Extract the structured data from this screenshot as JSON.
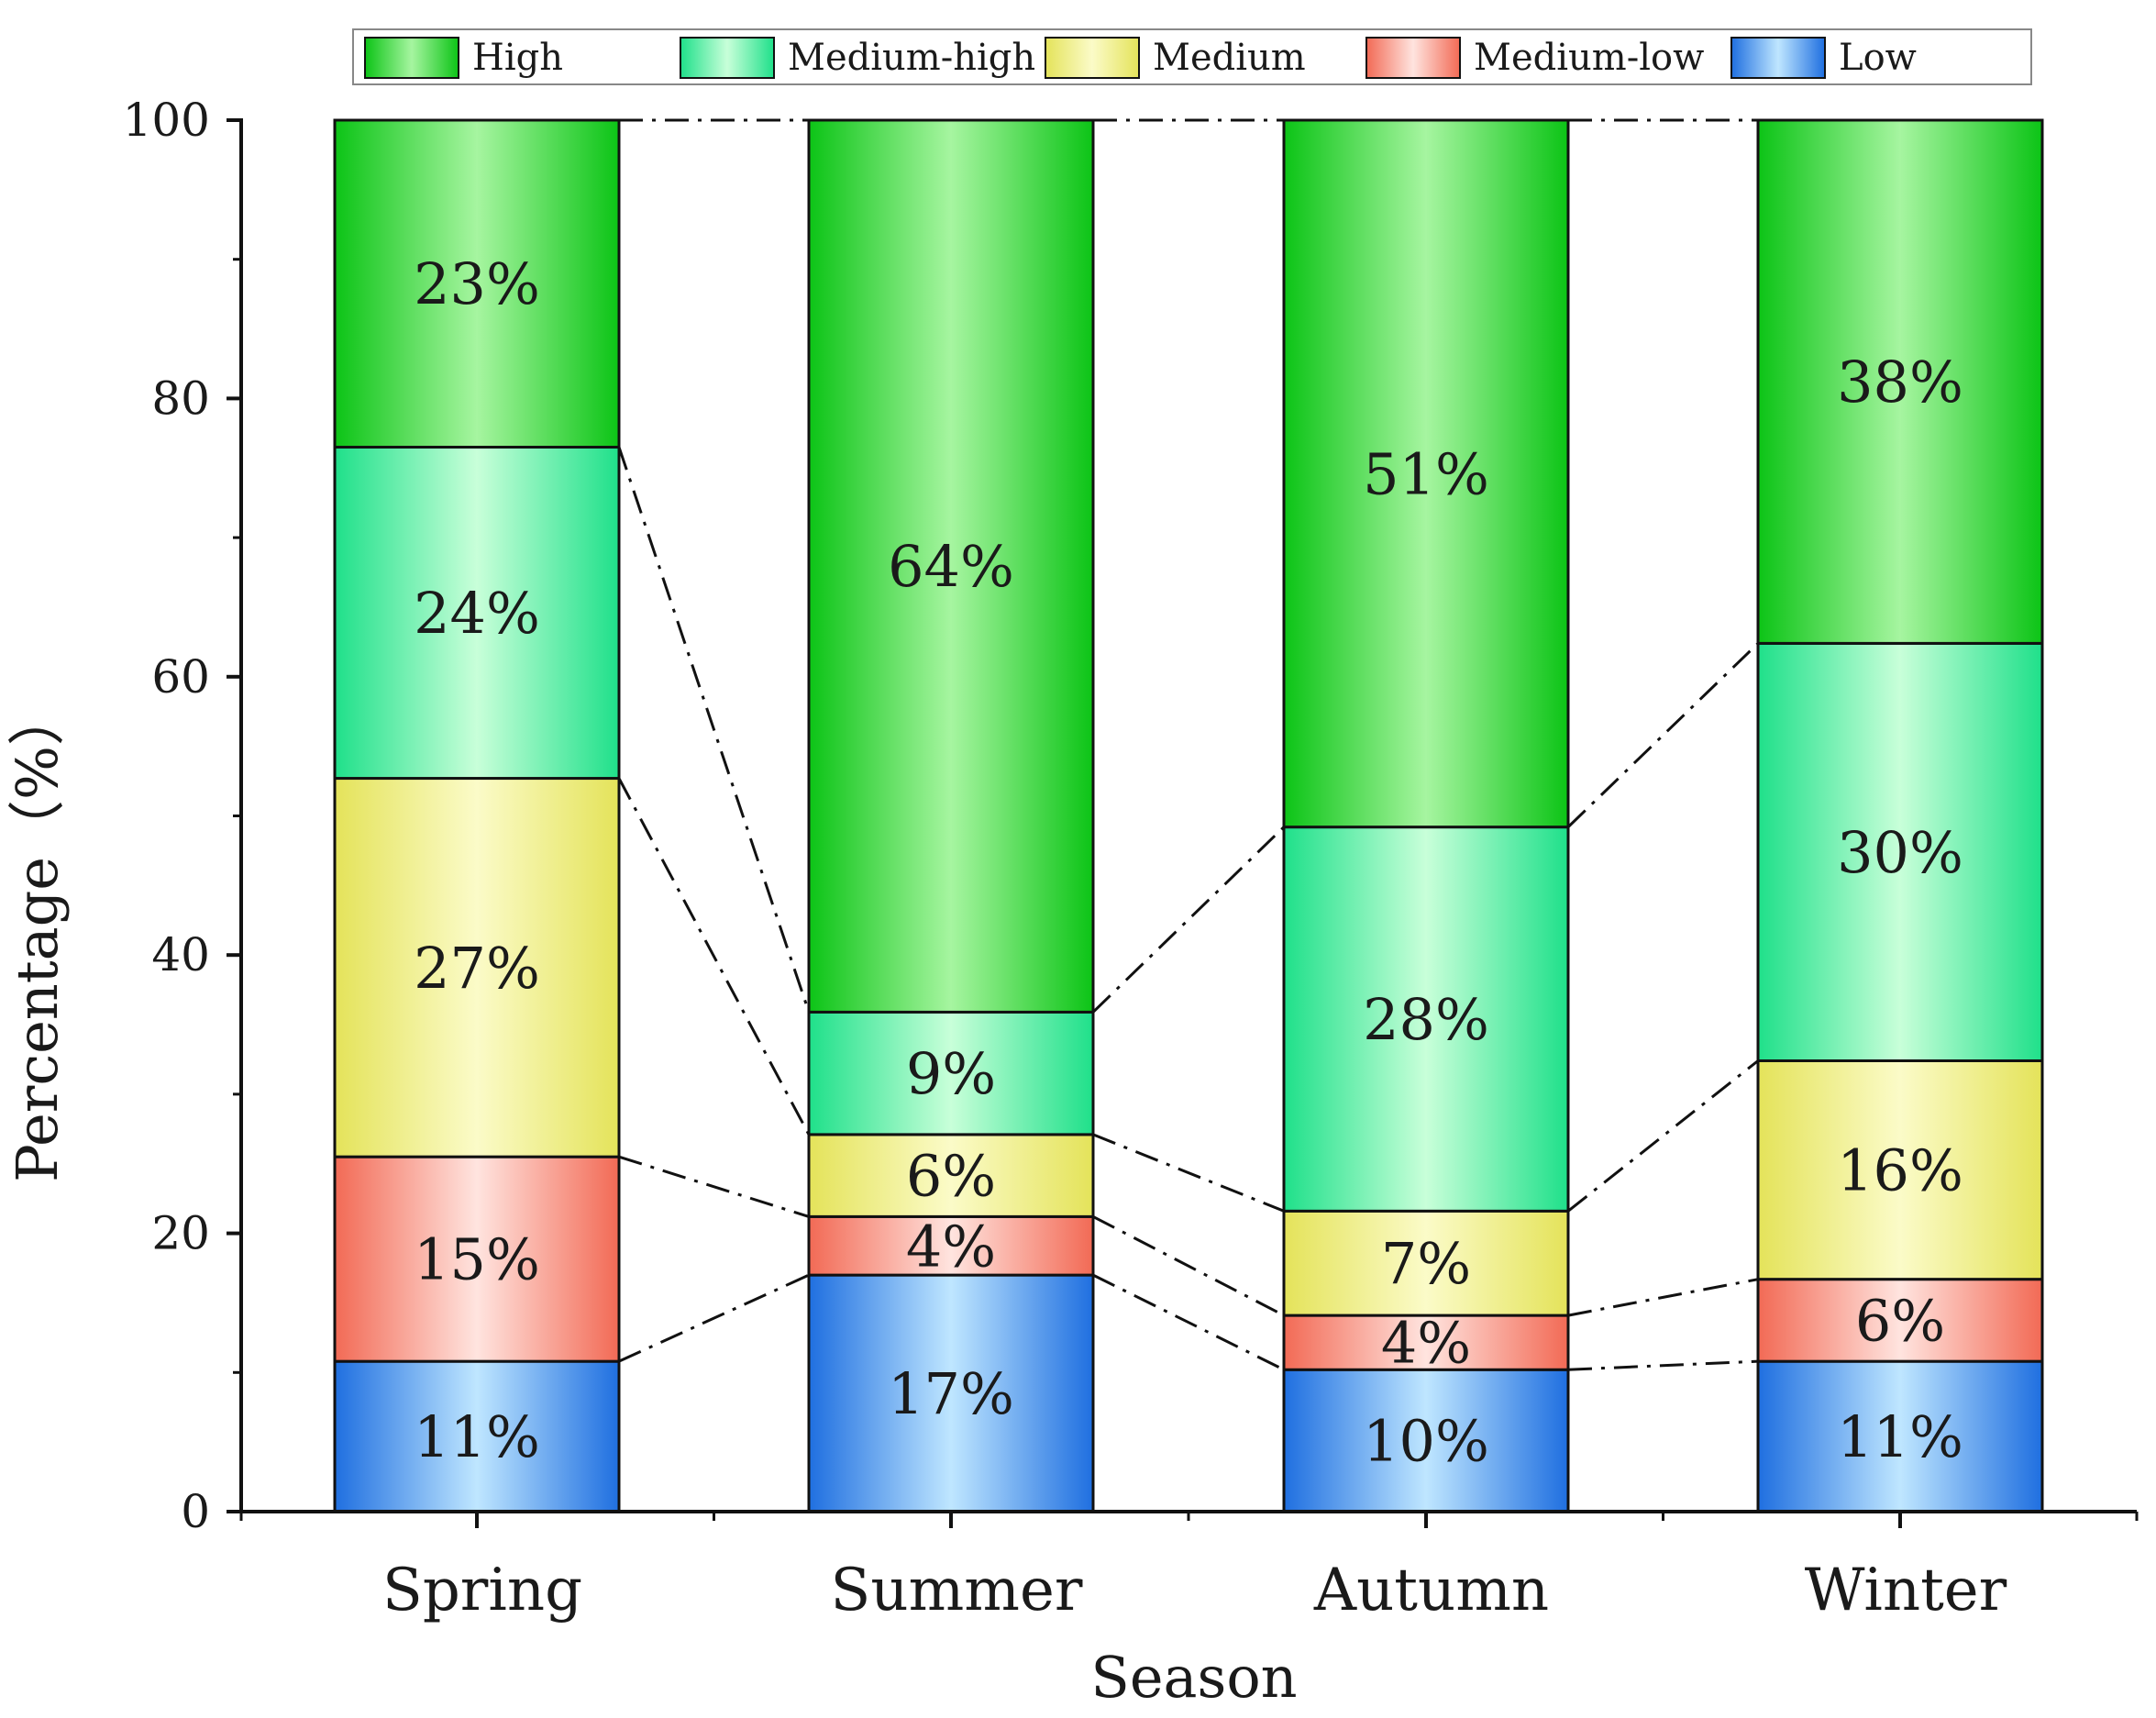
{
  "chart_data": {
    "type": "bar",
    "stacked": true,
    "title": "",
    "xlabel": "Season",
    "ylabel": "Percentage（%）",
    "ylim": [
      0,
      100
    ],
    "yticks": [
      0,
      20,
      40,
      60,
      80,
      100
    ],
    "legend_position": "top",
    "categories": [
      "Spring",
      "Summer",
      "Autumn",
      "Winter"
    ],
    "series": [
      {
        "name": "Low",
        "color": "#1f6fe0",
        "light": "#bfe6ff",
        "values": [
          10.8,
          17.0,
          10.2,
          10.8
        ],
        "labels": [
          "11%",
          "17%",
          "10%",
          "11%"
        ]
      },
      {
        "name": "Medium-low",
        "color": "#f26a55",
        "light": "#ffe4df",
        "values": [
          14.7,
          4.2,
          3.9,
          5.9
        ],
        "labels": [
          "15%",
          "4%",
          "4%",
          "6%"
        ]
      },
      {
        "name": "Medium",
        "color": "#e4e35a",
        "light": "#fbfbc8",
        "values": [
          27.2,
          5.9,
          7.5,
          15.7
        ],
        "labels": [
          "27%",
          "6%",
          "7%",
          "16%"
        ]
      },
      {
        "name": "Medium-high",
        "color": "#1fe08a",
        "light": "#c8ffd9",
        "values": [
          23.8,
          8.8,
          27.6,
          30.0
        ],
        "labels": [
          "24%",
          "9%",
          "28%",
          "30%"
        ]
      },
      {
        "name": "High",
        "color": "#0cc416",
        "light": "#a6f5a0",
        "values": [
          23.5,
          64.1,
          50.8,
          37.6
        ],
        "labels": [
          "23%",
          "64%",
          "51%",
          "38%"
        ]
      }
    ],
    "legend_order": [
      "High",
      "Medium-high",
      "Medium",
      "Medium-low",
      "Low"
    ]
  }
}
